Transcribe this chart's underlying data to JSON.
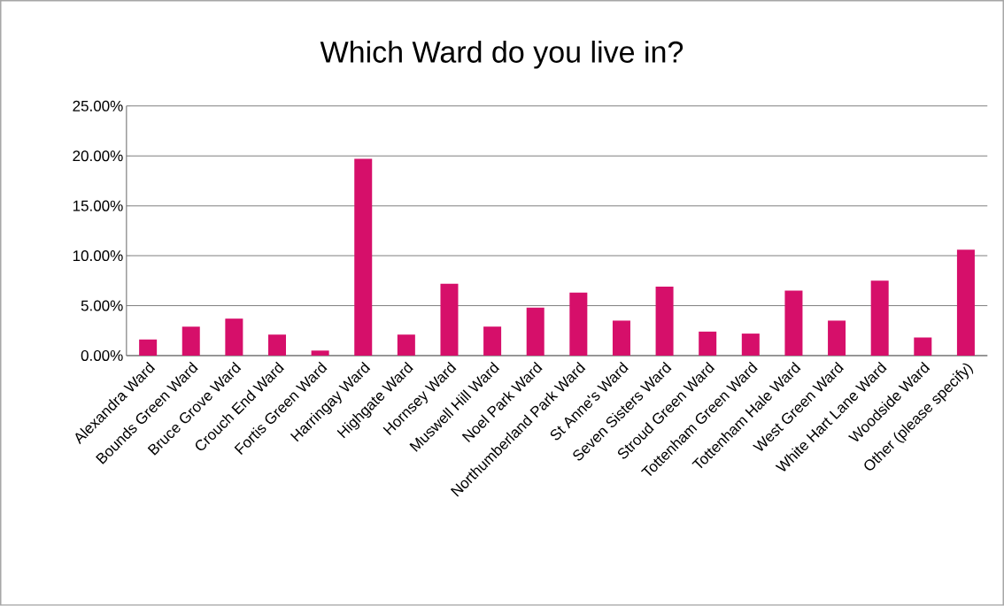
{
  "chart_data": {
    "type": "bar",
    "title": "Which Ward do you live in?",
    "categories": [
      "Alexandra Ward",
      "Bounds Green Ward",
      "Bruce Grove Ward",
      "Crouch End Ward",
      "Fortis Green Ward",
      "Harringay Ward",
      "Highgate Ward",
      "Hornsey Ward",
      "Muswell Hill Ward",
      "Noel Park Ward",
      "Northumberland Park Ward",
      "St Anne's Ward",
      "Seven Sisters Ward",
      "Stroud Green Ward",
      "Tottenham Green Ward",
      "Tottenham Hale Ward",
      "West Green Ward",
      "White Hart Lane Ward",
      "Woodside Ward",
      "Other (please specify)"
    ],
    "values": [
      1.6,
      2.9,
      3.7,
      2.1,
      0.5,
      19.7,
      2.1,
      7.2,
      2.9,
      4.8,
      6.3,
      3.5,
      6.9,
      2.4,
      2.2,
      6.5,
      3.5,
      7.5,
      1.8,
      10.6
    ],
    "color": "#d60f6a",
    "ylim": [
      0,
      25
    ],
    "yticks": [
      {
        "value": 0,
        "label": "0.00%"
      },
      {
        "value": 5,
        "label": "5.00%"
      },
      {
        "value": 10,
        "label": "10.00%"
      },
      {
        "value": 15,
        "label": "15.00%"
      },
      {
        "value": 20,
        "label": "20.00%"
      },
      {
        "value": 25,
        "label": "25.00%"
      }
    ],
    "grid": "y"
  }
}
